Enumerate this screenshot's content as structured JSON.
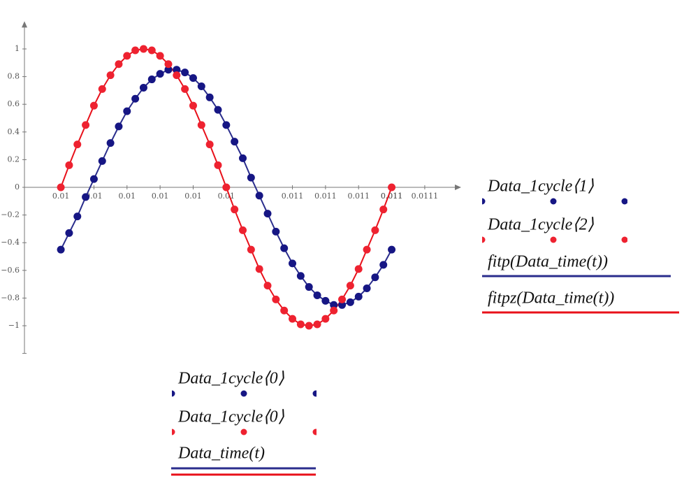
{
  "chart_data": {
    "type": "scatter",
    "x": [
      0.01,
      0.010025,
      0.01005,
      0.010075,
      0.0101,
      0.010125,
      0.01015,
      0.010175,
      0.0102,
      0.010225,
      0.01025,
      0.010275,
      0.0103,
      0.010325,
      0.01035,
      0.010375,
      0.0104,
      0.010425,
      0.01045,
      0.010475,
      0.0105,
      0.010525,
      0.01055,
      0.010575,
      0.0106,
      0.010625,
      0.01065,
      0.010675,
      0.0107,
      0.010725,
      0.01075,
      0.010775,
      0.0108,
      0.010825,
      0.01085,
      0.010875,
      0.0109,
      0.010925,
      0.01095,
      0.010975,
      0.011
    ],
    "series": [
      {
        "name": "Data_1cycle⟨1⟩",
        "type": "scatter",
        "color": "#161684",
        "values": [
          -0.45,
          -0.33,
          -0.21,
          -0.07,
          0.06,
          0.19,
          0.32,
          0.44,
          0.55,
          0.64,
          0.72,
          0.78,
          0.82,
          0.85,
          0.85,
          0.83,
          0.79,
          0.73,
          0.65,
          0.56,
          0.45,
          0.33,
          0.21,
          0.07,
          -0.06,
          -0.19,
          -0.32,
          -0.44,
          -0.55,
          -0.64,
          -0.72,
          -0.78,
          -0.82,
          -0.85,
          -0.85,
          -0.83,
          -0.79,
          -0.73,
          -0.65,
          -0.56,
          -0.45
        ]
      },
      {
        "name": "Data_1cycle⟨2⟩",
        "type": "scatter",
        "color": "#ee2230",
        "values": [
          0,
          0.16,
          0.31,
          0.45,
          0.59,
          0.71,
          0.81,
          0.89,
          0.95,
          0.99,
          1,
          0.99,
          0.95,
          0.89,
          0.81,
          0.71,
          0.59,
          0.45,
          0.31,
          0.16,
          0,
          -0.16,
          -0.31,
          -0.45,
          -0.59,
          -0.71,
          -0.81,
          -0.89,
          -0.95,
          -0.99,
          -1,
          -0.99,
          -0.95,
          -0.89,
          -0.81,
          -0.71,
          -0.59,
          -0.45,
          -0.31,
          -0.16,
          0
        ]
      },
      {
        "name": "fitp(Data_time(t))",
        "type": "line",
        "color": "#2a2d8c",
        "values": [
          -0.45,
          -0.33,
          -0.21,
          -0.07,
          0.06,
          0.19,
          0.32,
          0.44,
          0.55,
          0.64,
          0.72,
          0.78,
          0.82,
          0.85,
          0.85,
          0.83,
          0.79,
          0.73,
          0.65,
          0.56,
          0.45,
          0.33,
          0.21,
          0.07,
          -0.06,
          -0.19,
          -0.32,
          -0.44,
          -0.55,
          -0.64,
          -0.72,
          -0.78,
          -0.82,
          -0.85,
          -0.85,
          -0.83,
          -0.79,
          -0.73,
          -0.65,
          -0.56,
          -0.45
        ]
      },
      {
        "name": "fitpz(Data_time(t))",
        "type": "line",
        "color": "#e8101a",
        "values": [
          0,
          0.16,
          0.31,
          0.45,
          0.59,
          0.71,
          0.81,
          0.89,
          0.95,
          0.99,
          1,
          0.99,
          0.95,
          0.89,
          0.81,
          0.71,
          0.59,
          0.45,
          0.31,
          0.16,
          0,
          -0.16,
          -0.31,
          -0.45,
          -0.59,
          -0.71,
          -0.81,
          -0.89,
          -0.95,
          -0.99,
          -1,
          -0.99,
          -0.95,
          -0.89,
          -0.81,
          -0.71,
          -0.59,
          -0.45,
          -0.31,
          -0.16,
          0
        ]
      }
    ],
    "x_axis_legend": [
      "Data_1cycle⟨0⟩",
      "Data_1cycle⟨0⟩",
      "Data_time(t)"
    ],
    "xlim": [
      0.00989,
      0.01121
    ],
    "xticks": [
      0.01,
      {
        "value": 0.0101,
        "label": "0.01"
      },
      {
        "value": 0.0102,
        "label": "0.01"
      },
      {
        "value": 0.0103,
        "label": "0.01"
      },
      {
        "value": 0.0104,
        "label": "0.01"
      },
      {
        "value": 0.0105,
        "label": "0.01"
      },
      0.011,
      {
        "value": 0.0107,
        "label": "0.011"
      },
      {
        "value": 0.0108,
        "label": "0.011"
      },
      {
        "value": 0.0109,
        "label": "0.011"
      },
      {
        "value": 0.011,
        "label": "0.011"
      },
      0.0111
    ],
    "ylim": [
      -1.2,
      1.2
    ],
    "yticks": [
      {
        "value": -1,
        "label": "−1"
      },
      {
        "value": -0.8,
        "label": "−0.8"
      },
      {
        "value": -0.6,
        "label": "−0.6"
      },
      {
        "value": -0.4,
        "label": "−0.4"
      },
      {
        "value": -0.2,
        "label": "−0.2"
      },
      0,
      0.2,
      0.4,
      0.6,
      0.8,
      1
    ]
  }
}
